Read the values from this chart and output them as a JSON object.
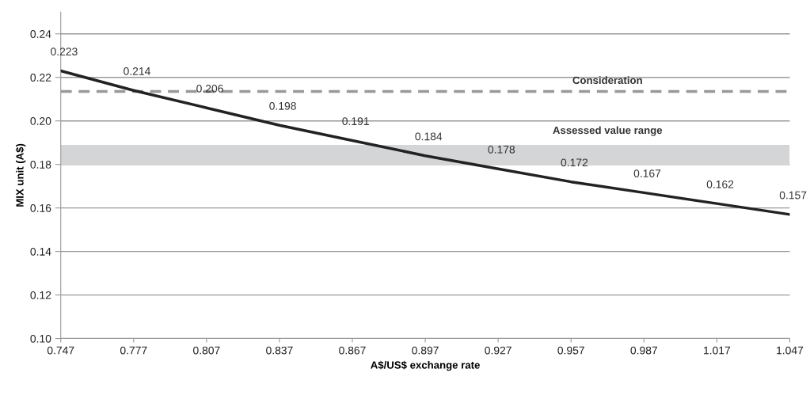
{
  "chart_data": {
    "type": "line",
    "xlabel": "A$/US$ exchange rate",
    "ylabel": "MIX unit (A$)",
    "x": [
      0.747,
      0.777,
      0.807,
      0.837,
      0.867,
      0.897,
      0.927,
      0.957,
      0.987,
      1.017,
      1.047
    ],
    "series": [
      {
        "color": "#222222",
        "values": [
          0.223,
          0.214,
          0.206,
          0.198,
          0.191,
          0.184,
          0.178,
          0.172,
          0.167,
          0.162,
          0.157
        ]
      }
    ],
    "data_labels": true,
    "xlim": [
      0.747,
      1.047
    ],
    "xticks": [
      0.747,
      0.777,
      0.807,
      0.837,
      0.867,
      0.897,
      0.927,
      0.957,
      0.987,
      1.017,
      1.047
    ],
    "ylim": [
      0.1,
      0.25
    ],
    "yticks": [
      {
        "value": 0.1,
        "label": "0.10"
      },
      0.12,
      0.14,
      0.16,
      0.18,
      {
        "value": 0.2,
        "label": "0.20"
      },
      0.22,
      0.24
    ],
    "grid": "y",
    "marker": "none",
    "line_style": "solid",
    "legend": false,
    "ref_lines": [
      {
        "axis": "y",
        "value": 0.2135,
        "label": "Consideration",
        "color": "#999999",
        "line_style": "dashed"
      }
    ],
    "bands": [
      {
        "axis": "y",
        "from": 0.1795,
        "to": 0.189,
        "label": "Assessed value range",
        "color": "#d4d5d7"
      }
    ]
  }
}
